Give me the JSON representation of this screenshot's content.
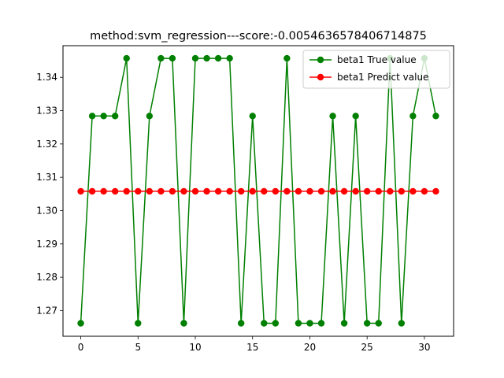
{
  "chart_data": {
    "type": "line",
    "title": "method:svm_regression---score:-0.0054636578406714875",
    "xlabel": "",
    "ylabel": "",
    "xlim": [
      -1.55,
      32.55
    ],
    "ylim": [
      1.2623,
      1.3495
    ],
    "xticks": [
      0,
      5,
      10,
      15,
      20,
      25,
      30
    ],
    "yticks": [
      1.27,
      1.28,
      1.29,
      1.3,
      1.31,
      1.32,
      1.33,
      1.34
    ],
    "ytick_labels": [
      "1.27",
      "1.28",
      "1.29",
      "1.30",
      "1.31",
      "1.32",
      "1.33",
      "1.34"
    ],
    "grid": false,
    "legend_position": "top-right",
    "x": [
      0,
      1,
      2,
      3,
      4,
      5,
      6,
      7,
      8,
      9,
      10,
      11,
      12,
      13,
      14,
      15,
      16,
      17,
      18,
      19,
      20,
      21,
      22,
      23,
      24,
      25,
      26,
      27,
      28,
      29,
      30,
      31
    ],
    "series": [
      {
        "name": "beta1 True value",
        "color": "#008000",
        "values": [
          1.2662,
          1.3284,
          1.3284,
          1.3284,
          1.3457,
          1.2662,
          1.3284,
          1.3457,
          1.3457,
          1.2662,
          1.3457,
          1.3457,
          1.3457,
          1.3457,
          1.2662,
          1.3284,
          1.2662,
          1.2662,
          1.3457,
          1.2662,
          1.2662,
          1.2662,
          1.3284,
          1.2662,
          1.3284,
          1.2662,
          1.2662,
          1.3457,
          1.2662,
          1.3284,
          1.3457,
          1.3284
        ]
      },
      {
        "name": "beta1 Predict value",
        "color": "#ff0000",
        "values": [
          1.3058,
          1.3058,
          1.3058,
          1.3058,
          1.3058,
          1.3058,
          1.3058,
          1.3058,
          1.3058,
          1.3058,
          1.3058,
          1.3058,
          1.3058,
          1.3058,
          1.3058,
          1.3058,
          1.3058,
          1.3058,
          1.3058,
          1.3058,
          1.3058,
          1.3058,
          1.3058,
          1.3058,
          1.3058,
          1.3058,
          1.3058,
          1.3058,
          1.3058,
          1.3058,
          1.3058,
          1.3058
        ]
      }
    ]
  }
}
